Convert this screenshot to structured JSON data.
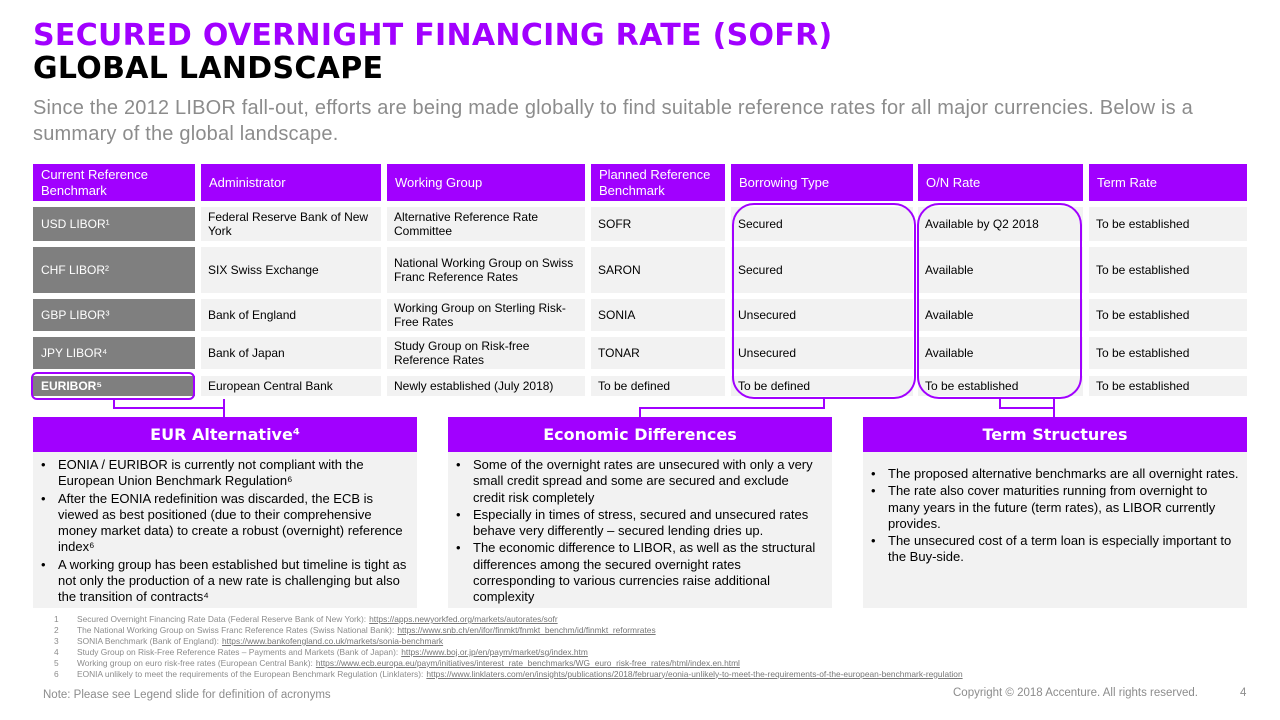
{
  "title_line1": "SECURED OVERNIGHT FINANCING RATE (SOFR)",
  "title_line2": "GLOBAL LANDSCAPE",
  "subtitle": "Since the 2012 LIBOR fall-out, efforts are being made globally to find suitable reference rates for all major currencies. Below is a summary of the global landscape.",
  "table": {
    "headers": [
      "Current Reference Benchmark",
      "Administrator",
      "Working Group",
      "Planned Reference Benchmark",
      "Borrowing Type",
      "O/N Rate",
      "Term Rate"
    ],
    "rows": [
      [
        "USD LIBOR¹",
        "Federal Reserve Bank of New York",
        "Alternative Reference Rate Committee",
        "SOFR",
        "Secured",
        "Available by Q2 2018",
        "To be established"
      ],
      [
        "CHF LIBOR²",
        "SIX Swiss Exchange",
        "National Working Group on Swiss Franc Reference Rates",
        "SARON",
        "Secured",
        "Available",
        "To be established"
      ],
      [
        "GBP LIBOR³",
        "Bank of England",
        "Working Group on Sterling Risk-Free Rates",
        "SONIA",
        "Unsecured",
        "Available",
        "To be established"
      ],
      [
        "JPY LIBOR⁴",
        "Bank of Japan",
        "Study Group on Risk-free Reference Rates",
        "TONAR",
        "Unsecured",
        "Available",
        "To be established"
      ],
      [
        "EURIBOR⁵",
        "European Central Bank",
        "Newly established (July 2018)",
        "To be defined",
        "To be defined",
        "To be established",
        "To be established"
      ]
    ]
  },
  "panels": [
    {
      "title": "EUR Alternative⁴",
      "bullets": [
        "EONIA / EURIBOR is currently not compliant with the European Union Benchmark Regulation⁶",
        "After the EONIA redefinition was discarded, the ECB is viewed as best positioned (due to their comprehensive money market data) to create a robust (overnight) reference index⁶",
        "A working group has been established but timeline is tight as not only the production of a new rate is challenging but also the transition of contracts⁴"
      ]
    },
    {
      "title": "Economic Differences",
      "bullets": [
        "Some of the overnight rates are unsecured with only a very small credit spread and some are secured and exclude credit risk completely",
        "Especially in times of stress, secured and unsecured rates behave very differently – secured lending dries up.",
        "The economic difference to LIBOR, as well as the structural differences among the secured overnight rates corresponding to various currencies raise additional complexity"
      ]
    },
    {
      "title": "Term Structures",
      "bullets": [
        "The proposed alternative benchmarks are all overnight rates.",
        "The rate also cover maturities running from overnight to many years in the future (term rates), as LIBOR currently provides.",
        "The unsecured cost of a term loan is especially important to the Buy-side."
      ]
    }
  ],
  "footnotes": [
    {
      "num": "1",
      "text": "Secured Overnight Financing Rate Data (Federal Reserve Bank of New York):",
      "url": "https://apps.newyorkfed.org/markets/autorates/sofr"
    },
    {
      "num": "2",
      "text": "The National Working Group on Swiss Franc Reference Rates (Swiss National Bank):",
      "url": "https://www.snb.ch/en/ifor/finmkt/fnmkt_benchm/id/finmkt_reformrates"
    },
    {
      "num": "3",
      "text": "SONIA Benchmark (Bank of England):",
      "url": "https://www.bankofengland.co.uk/markets/sonia-benchmark"
    },
    {
      "num": "4",
      "text": "Study Group on Risk-Free Reference Rates – Payments and Markets (Bank of Japan):",
      "url": "https://www.boj.or.jp/en/paym/market/sg/index.htm"
    },
    {
      "num": "5",
      "text": "Working group on euro risk-free rates (European Central Bank):",
      "url": "https://www.ecb.europa.eu/paym/initiatives/interest_rate_benchmarks/WG_euro_risk-free_rates/html/index.en.html"
    },
    {
      "num": "6",
      "text": "EONIA unlikely to meet the requirements of the European Benchmark Regulation (Linklaters):",
      "url": "https://www.linklaters.com/en/insights/publications/2018/february/eonia-unlikely-to-meet-the-requirements-of-the-european-benchmark-regulation"
    }
  ],
  "footer": {
    "note": "Note: Please see Legend slide for definition of acronyms",
    "copyright": "Copyright © 2018 Accenture. All rights reserved.",
    "page": "4"
  },
  "colors": {
    "accent": "#a100ff",
    "row_label_gray": "#7f7f7f",
    "cell_bg": "#f2f2f2",
    "muted_text": "#8c8c8c"
  }
}
